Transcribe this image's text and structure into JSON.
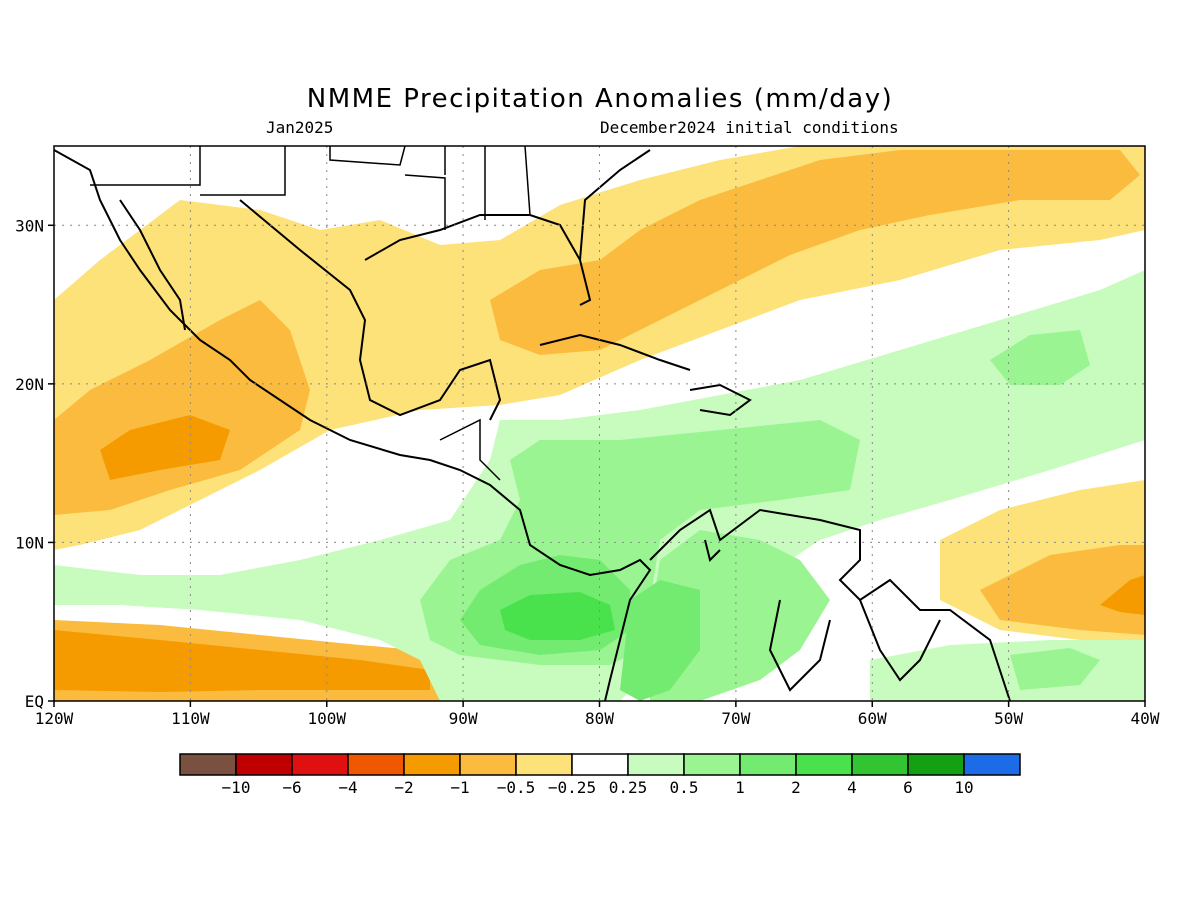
{
  "title": "NMME Precipitation Anomalies (mm/day)",
  "subtitle_left": "Jan2025",
  "subtitle_right": "December2024 initial conditions",
  "map": {
    "lon_range": [
      -120,
      -40
    ],
    "lat_range": [
      0,
      35
    ],
    "lon_ticks": [
      {
        "lon": -120,
        "label": "120W"
      },
      {
        "lon": -110,
        "label": "110W"
      },
      {
        "lon": -100,
        "label": "100W"
      },
      {
        "lon": -90,
        "label": "90W"
      },
      {
        "lon": -80,
        "label": "80W"
      },
      {
        "lon": -70,
        "label": "70W"
      },
      {
        "lon": -60,
        "label": "60W"
      },
      {
        "lon": -50,
        "label": "50W"
      },
      {
        "lon": -40,
        "label": "40W"
      }
    ],
    "lat_ticks": [
      {
        "lat": 0,
        "label": "EQ"
      },
      {
        "lat": 10,
        "label": "10N"
      },
      {
        "lat": 20,
        "label": "20N"
      },
      {
        "lat": 30,
        "label": "30N"
      }
    ],
    "grid": true
  },
  "colorbar": {
    "colors": [
      "#7a5040",
      "#c00000",
      "#e01010",
      "#f05800",
      "#f59b00",
      "#fbbb3e",
      "#fde27a",
      "#ffffff",
      "#c8fcbe",
      "#9af492",
      "#73eb70",
      "#4ae24c",
      "#33c433",
      "#13a113",
      "#1c6ce8"
    ],
    "labels": [
      "−10",
      "−6",
      "−4",
      "−2",
      "−1",
      "−0.5",
      "−0.25",
      "0.25",
      "0.5",
      "1",
      "2",
      "4",
      "6",
      "10"
    ]
  }
}
